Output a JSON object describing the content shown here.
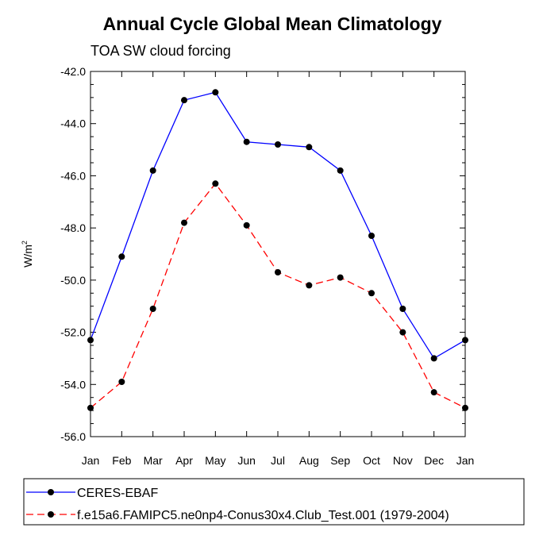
{
  "chart_data": {
    "type": "line",
    "title": "Annual Cycle Global Mean Climatology",
    "subtitle": "TOA SW cloud forcing",
    "ylabel": "W/m",
    "ylabel_sup": "2",
    "ylim": [
      -56.0,
      -42.0
    ],
    "yticks": [
      -56.0,
      -54.0,
      -52.0,
      -50.0,
      -48.0,
      -46.0,
      -44.0,
      -42.0
    ],
    "ytick_labels": [
      "-56.0",
      "-54.0",
      "-52.0",
      "-50.0",
      "-48.0",
      "-46.0",
      "-44.0",
      "-42.0"
    ],
    "categories": [
      "Jan",
      "Feb",
      "Mar",
      "Apr",
      "May",
      "Jun",
      "Jul",
      "Aug",
      "Sep",
      "Oct",
      "Nov",
      "Dec",
      "Jan"
    ],
    "series": [
      {
        "name": "CERES-EBAF",
        "color": "#0000ff",
        "dash": "solid",
        "values": [
          -52.3,
          -49.1,
          -45.8,
          -43.1,
          -42.8,
          -44.7,
          -44.8,
          -44.9,
          -45.8,
          -48.3,
          -51.1,
          -53.0,
          -52.3
        ]
      },
      {
        "name": "f.e15a6.FAMIPC5.ne0np4-Conus30x4.Club_Test.001 (1979-2004)",
        "color": "#ff0000",
        "dash": "dashed",
        "values": [
          -54.9,
          -53.9,
          -51.1,
          -47.8,
          -46.3,
          -47.9,
          -49.7,
          -50.2,
          -49.9,
          -50.5,
          -52.0,
          -54.3,
          -54.9
        ]
      }
    ],
    "marker_color": "#000000",
    "legend_position": "bottom"
  }
}
